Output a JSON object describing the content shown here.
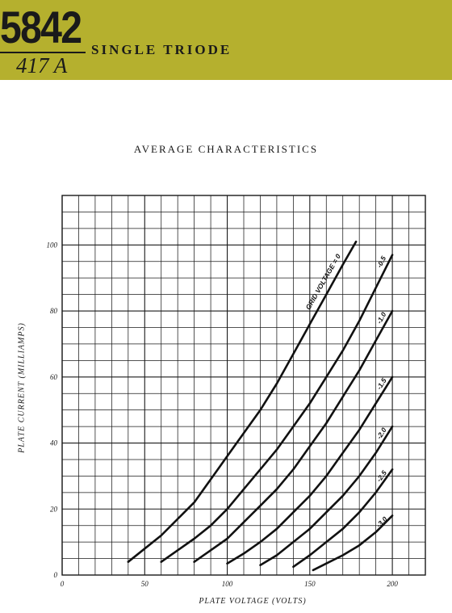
{
  "header": {
    "tube_number": "5842",
    "tube_alt": "417 A",
    "tube_type": "SINGLE TRIODE",
    "band_color": "#b5b02e"
  },
  "chart_data": {
    "type": "line",
    "title": "AVERAGE CHARACTERISTICS",
    "xlabel": "PLATE VOLTAGE (VOLTS)",
    "ylabel": "PLATE CURRENT (MILLIAMPS)",
    "xlim": [
      0,
      220
    ],
    "ylim": [
      0,
      115
    ],
    "x_ticks": [
      0,
      50,
      100,
      150,
      200
    ],
    "y_ticks": [
      0,
      20,
      40,
      60,
      80,
      100
    ],
    "grid": true,
    "series": [
      {
        "name": "GRID VOLTAGE = 0",
        "x": [
          40,
          50,
          60,
          70,
          80,
          90,
          100,
          110,
          120,
          130,
          140,
          150,
          160,
          170,
          178
        ],
        "y": [
          4,
          8,
          12,
          17,
          22,
          29,
          36,
          43,
          50,
          58,
          67,
          76,
          85,
          94,
          101
        ]
      },
      {
        "name": "-0.5",
        "x": [
          60,
          70,
          80,
          90,
          100,
          110,
          120,
          130,
          140,
          150,
          160,
          170,
          180,
          190,
          200
        ],
        "y": [
          4,
          7.5,
          11,
          15,
          20,
          26,
          32,
          38,
          45,
          52,
          60,
          68,
          77,
          87,
          97
        ]
      },
      {
        "name": "-1.0",
        "x": [
          80,
          90,
          100,
          110,
          120,
          130,
          140,
          150,
          160,
          170,
          180,
          190,
          200
        ],
        "y": [
          4,
          7.5,
          11,
          16,
          21,
          26,
          32,
          39,
          46,
          54,
          62,
          71,
          80
        ]
      },
      {
        "name": "-1.5",
        "x": [
          100,
          110,
          120,
          130,
          140,
          150,
          160,
          170,
          180,
          190,
          200
        ],
        "y": [
          3.5,
          6.5,
          10,
          14,
          19,
          24,
          30,
          37,
          44,
          52,
          60
        ]
      },
      {
        "name": "-2.0",
        "x": [
          120,
          130,
          140,
          150,
          160,
          170,
          180,
          190,
          200
        ],
        "y": [
          3,
          6,
          10,
          14,
          19,
          24,
          30,
          37,
          45
        ]
      },
      {
        "name": "-2.5",
        "x": [
          140,
          150,
          160,
          170,
          180,
          190,
          200
        ],
        "y": [
          2.5,
          6,
          10,
          14,
          19,
          25,
          32
        ]
      },
      {
        "name": "-3.0",
        "x": [
          152,
          160,
          170,
          180,
          190,
          200
        ],
        "y": [
          1.5,
          3.5,
          6,
          9,
          13,
          18
        ]
      }
    ]
  }
}
